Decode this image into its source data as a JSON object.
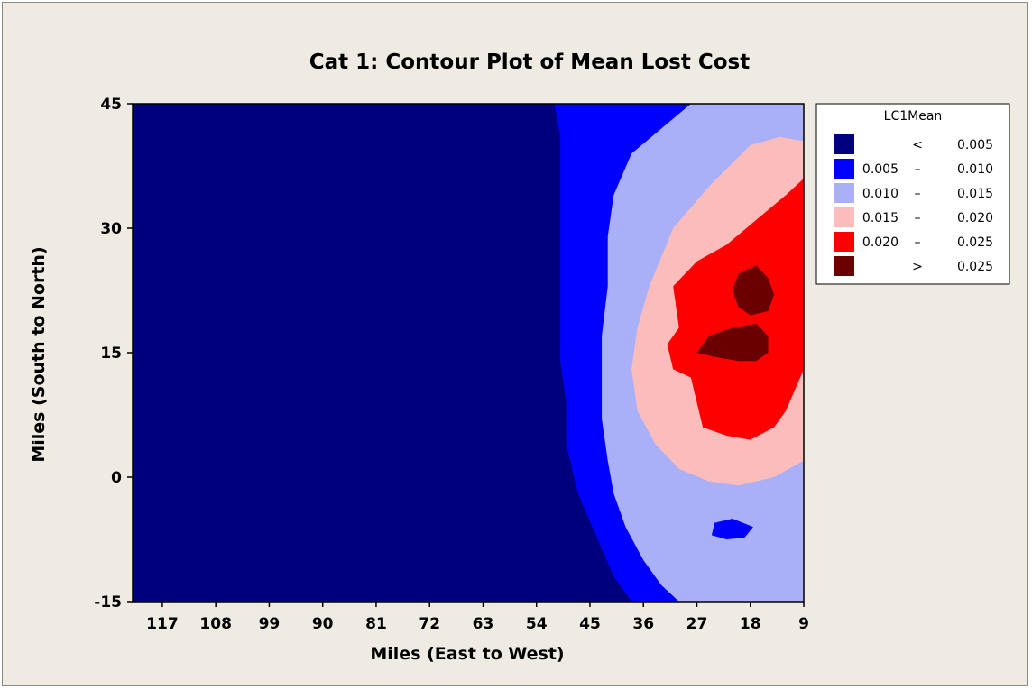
{
  "chart_data": {
    "type": "contour",
    "title": "Cat 1: Contour Plot of Mean Lost Cost",
    "xlabel": "Miles (East to West)",
    "ylabel": "Miles (South to North)",
    "x_ticks": [
      117,
      108,
      99,
      90,
      81,
      72,
      63,
      54,
      45,
      36,
      27,
      18,
      9
    ],
    "y_ticks": [
      45,
      30,
      15,
      0,
      -15
    ],
    "xlim": [
      122,
      9
    ],
    "ylim": [
      -15,
      45
    ],
    "x_reversed": true,
    "legend": {
      "title": "LC1Mean",
      "position": "right",
      "entries": [
        {
          "low": "",
          "op": "<",
          "high": "0.005",
          "color": "#00007f"
        },
        {
          "low": "0.005",
          "op": "–",
          "high": "0.010",
          "color": "#0000ff"
        },
        {
          "low": "0.010",
          "op": "–",
          "high": "0.015",
          "color": "#aab0f8"
        },
        {
          "low": "0.015",
          "op": "–",
          "high": "0.020",
          "color": "#fbbcbc"
        },
        {
          "low": "0.020",
          "op": "–",
          "high": "0.025",
          "color": "#ff0000"
        },
        {
          "low": "",
          "op": ">",
          "high": "0.025",
          "color": "#6b0000"
        }
      ]
    },
    "regions": [
      {
        "level": "0.005 – 0.010",
        "color": "#0000ff",
        "points": [
          [
            51,
            45
          ],
          [
            40,
            45
          ],
          [
            27,
            45
          ],
          [
            9,
            45
          ],
          [
            9,
            -15
          ],
          [
            38,
            -15
          ],
          [
            41,
            -12
          ],
          [
            44,
            -7
          ],
          [
            47,
            -2
          ],
          [
            49,
            4
          ],
          [
            49,
            9
          ],
          [
            50,
            14
          ],
          [
            50,
            19
          ],
          [
            50,
            25
          ],
          [
            50,
            29
          ],
          [
            50,
            35
          ],
          [
            50,
            41
          ]
        ]
      },
      {
        "level": "0.010 – 0.015",
        "color": "#aab0f8",
        "points": [
          [
            28,
            45
          ],
          [
            9,
            45
          ],
          [
            9,
            -15
          ],
          [
            30,
            -15
          ],
          [
            33,
            -13
          ],
          [
            36,
            -10
          ],
          [
            39,
            -6
          ],
          [
            41,
            -2
          ],
          [
            42,
            2
          ],
          [
            43,
            7
          ],
          [
            43,
            12
          ],
          [
            43,
            17
          ],
          [
            42,
            23
          ],
          [
            42,
            29
          ],
          [
            41,
            34
          ],
          [
            38,
            39
          ],
          [
            33,
            42
          ]
        ]
      },
      {
        "level": "0.015 – 0.020",
        "color": "#fbbcbc",
        "points": [
          [
            9,
            40.5
          ],
          [
            9,
            2
          ],
          [
            14,
            0
          ],
          [
            20,
            -1
          ],
          [
            25,
            -0.5
          ],
          [
            30,
            1
          ],
          [
            34,
            4
          ],
          [
            37,
            8
          ],
          [
            38,
            13
          ],
          [
            37,
            18
          ],
          [
            35,
            23
          ],
          [
            31,
            30
          ],
          [
            25,
            35
          ],
          [
            18,
            40
          ],
          [
            13,
            41
          ]
        ]
      },
      {
        "level": "0.020 – 0.025",
        "color": "#ff0000",
        "points": [
          [
            9,
            36
          ],
          [
            9,
            13
          ],
          [
            12,
            8
          ],
          [
            14,
            6
          ],
          [
            18,
            4.5
          ],
          [
            22,
            5
          ],
          [
            26,
            6
          ],
          [
            27,
            9
          ],
          [
            28,
            12
          ],
          [
            31,
            13
          ],
          [
            32,
            16
          ],
          [
            30,
            18
          ],
          [
            31,
            23
          ],
          [
            27,
            26
          ],
          [
            22,
            28
          ],
          [
            17,
            31
          ],
          [
            12,
            34
          ]
        ]
      },
      {
        "level": "> 0.025",
        "color": "#6b0000",
        "points": [
          [
            21,
            22.5
          ],
          [
            20,
            24.5
          ],
          [
            17,
            25.5
          ],
          [
            15,
            24
          ],
          [
            14,
            22
          ],
          [
            15,
            20
          ],
          [
            18,
            19.5
          ],
          [
            20,
            20.5
          ]
        ]
      },
      {
        "level": "> 0.025",
        "color": "#6b0000",
        "points": [
          [
            27,
            15
          ],
          [
            25,
            17
          ],
          [
            21,
            18
          ],
          [
            17,
            18.5
          ],
          [
            15,
            17
          ],
          [
            15,
            15
          ],
          [
            17,
            14
          ],
          [
            20,
            14
          ],
          [
            24,
            14.5
          ]
        ]
      },
      {
        "level": "0.005 – 0.010",
        "color": "#0000ff",
        "points": [
          [
            24.5,
            -7
          ],
          [
            24,
            -5.5
          ],
          [
            21,
            -5
          ],
          [
            17.5,
            -6
          ],
          [
            19,
            -7.3
          ],
          [
            22,
            -7.5
          ]
        ]
      }
    ]
  }
}
